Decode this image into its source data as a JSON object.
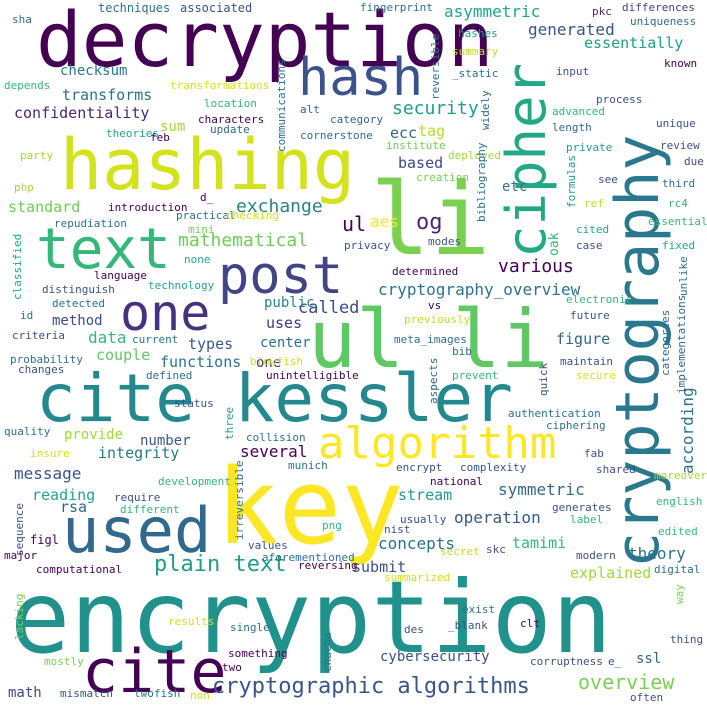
{
  "words": [
    {
      "text": "encryption",
      "color": "#21918c"
    },
    {
      "text": "decryption",
      "color": "#440154"
    },
    {
      "text": "hashing",
      "color": "#d2e21b"
    },
    {
      "text": "li",
      "color": "#7ad151"
    },
    {
      "text": "cryptography",
      "color": "#2a788e"
    },
    {
      "text": "cite kessler",
      "color": "#23898e"
    },
    {
      "text": "key",
      "color": "#fde725"
    },
    {
      "text": "ul li",
      "color": "#5ec962"
    },
    {
      "text": "used",
      "color": "#31688e"
    },
    {
      "text": "cite",
      "color": "#440154"
    },
    {
      "text": "hash",
      "color": "#3b528b"
    },
    {
      "text": "cipher",
      "color": "#22a884"
    },
    {
      "text": "text",
      "color": "#35b779"
    },
    {
      "text": "post",
      "color": "#414487"
    },
    {
      "text": "one",
      "color": "#46327e"
    },
    {
      "text": "algorithm",
      "color": "#fde725"
    },
    {
      "text": "cryptographic algorithms",
      "color": "#39568c"
    },
    {
      "text": "plain text",
      "color": "#1f9e89"
    },
    {
      "text": "overview",
      "color": "#7ad151"
    },
    {
      "text": "various",
      "color": "#440154"
    },
    {
      "text": "og",
      "color": "#482878"
    },
    {
      "text": "ul",
      "color": "#440154"
    },
    {
      "text": "aes",
      "color": "#fde725"
    },
    {
      "text": "cryptography_overview",
      "color": "#2c728e"
    },
    {
      "text": "called",
      "color": "#3e4989"
    },
    {
      "text": "mathematical",
      "color": "#6ece58"
    },
    {
      "text": "exchange",
      "color": "#26828e"
    },
    {
      "text": "security",
      "color": "#1f9e89"
    },
    {
      "text": "asymmetric",
      "color": "#22a884"
    },
    {
      "text": "generated",
      "color": "#3b528b"
    },
    {
      "text": "essentially",
      "color": "#1fa088"
    },
    {
      "text": "transforms",
      "color": "#2c728e"
    },
    {
      "text": "confidentiality",
      "color": "#482878"
    },
    {
      "text": "checksum",
      "color": "#2a788e"
    },
    {
      "text": "standard",
      "color": "#6ece58"
    },
    {
      "text": "one",
      "color": "#46327e"
    },
    {
      "text": "data",
      "color": "#35b779"
    },
    {
      "text": "method",
      "color": "#3e4989"
    },
    {
      "text": "couple",
      "color": "#5ec962"
    },
    {
      "text": "functions",
      "color": "#2c728e"
    },
    {
      "text": "types",
      "color": "#38598c"
    },
    {
      "text": "uses",
      "color": "#443983"
    },
    {
      "text": "public",
      "color": "#25848e"
    },
    {
      "text": "center",
      "color": "#2d708e"
    },
    {
      "text": "ecc",
      "color": "#31688e"
    },
    {
      "text": "tag",
      "color": "#b5de2b"
    },
    {
      "text": "based",
      "color": "#3e4989"
    },
    {
      "text": "etc",
      "color": "#2a788e"
    },
    {
      "text": "oak",
      "color": "#35b779"
    },
    {
      "text": "figure",
      "color": "#31688e"
    },
    {
      "text": "integrity",
      "color": "#2a788e"
    },
    {
      "text": "message",
      "color": "#3b528b"
    },
    {
      "text": "reading",
      "color": "#22a884"
    },
    {
      "text": "provide",
      "color": "#a0da39"
    },
    {
      "text": "number",
      "color": "#38598c"
    },
    {
      "text": "several",
      "color": "#440154"
    },
    {
      "text": "according",
      "color": "#2c728e"
    },
    {
      "text": "symmetric",
      "color": "#31688e"
    },
    {
      "text": "stream",
      "color": "#1f9e89"
    },
    {
      "text": "operation",
      "color": "#38598c"
    },
    {
      "text": "concepts",
      "color": "#2c728e"
    },
    {
      "text": "tamimi",
      "color": "#35b779"
    },
    {
      "text": "submit",
      "color": "#3b528b"
    },
    {
      "text": "theory",
      "color": "#2c728e"
    },
    {
      "text": "explained",
      "color": "#a0da39"
    },
    {
      "text": "rsa",
      "color": "#31688e"
    },
    {
      "text": "math",
      "color": "#3e4989"
    },
    {
      "text": "cybersecurity",
      "color": "#3b528b"
    },
    {
      "text": "ssl",
      "color": "#31688e"
    },
    {
      "text": "sum",
      "color": "#a0da39"
    },
    {
      "text": "figl",
      "color": "#440154"
    },
    {
      "text": "sha",
      "color": "#2c728e"
    },
    {
      "text": "techniques",
      "color": "#2c728e"
    },
    {
      "text": "associated",
      "color": "#3b528b"
    },
    {
      "text": "fingerprint",
      "color": "#2c728e"
    },
    {
      "text": "pkc",
      "color": "#482878"
    },
    {
      "text": "differences",
      "color": "#414487"
    },
    {
      "text": "uniqueness",
      "color": "#2c728e"
    },
    {
      "text": "hashes",
      "color": "#1f9e89"
    },
    {
      "text": "summary",
      "color": "#bddf26"
    },
    {
      "text": "reversible",
      "color": "#2c728e"
    },
    {
      "text": "_static",
      "color": "#2c728e"
    },
    {
      "text": "input",
      "color": "#3b528b"
    },
    {
      "text": "known",
      "color": "#440154"
    },
    {
      "text": "depends",
      "color": "#35b779"
    },
    {
      "text": "transformations",
      "color": "#d2e21b"
    },
    {
      "text": "process",
      "color": "#3b528b"
    },
    {
      "text": "advanced",
      "color": "#35b779"
    },
    {
      "text": "length",
      "color": "#31688e"
    },
    {
      "text": "unique",
      "color": "#3b528b"
    },
    {
      "text": "location",
      "color": "#35b779"
    },
    {
      "text": "communications",
      "color": "#2c728e"
    },
    {
      "text": "alt",
      "color": "#31688e"
    },
    {
      "text": "category",
      "color": "#31688e"
    },
    {
      "text": "widely",
      "color": "#31688e"
    },
    {
      "text": "institute",
      "color": "#6ece58"
    },
    {
      "text": "cornerstone",
      "color": "#2c728e"
    },
    {
      "text": "private",
      "color": "#1f9e89"
    },
    {
      "text": "review",
      "color": "#3b528b"
    },
    {
      "text": "due",
      "color": "#3e4989"
    },
    {
      "text": "theories",
      "color": "#22a884"
    },
    {
      "text": "feb",
      "color": "#440154"
    },
    {
      "text": "characters",
      "color": "#440154"
    },
    {
      "text": "update",
      "color": "#31688e"
    },
    {
      "text": "party",
      "color": "#a0da39"
    },
    {
      "text": "deployed",
      "color": "#a0da39"
    },
    {
      "text": "creation",
      "color": "#7ad151"
    },
    {
      "text": "bibliography",
      "color": "#2c728e"
    },
    {
      "text": "formulas",
      "color": "#1f9e89"
    },
    {
      "text": "see",
      "color": "#3b528b"
    },
    {
      "text": "third",
      "color": "#2c728e"
    },
    {
      "text": "php",
      "color": "#a0da39"
    },
    {
      "text": "d_",
      "color": "#440154"
    },
    {
      "text": "introduction",
      "color": "#440154"
    },
    {
      "text": "practical",
      "color": "#2c728e"
    },
    {
      "text": "mini",
      "color": "#7ad151"
    },
    {
      "text": "checking",
      "color": "#d2e21b"
    },
    {
      "text": "ref",
      "color": "#bddf26"
    },
    {
      "text": "rc4",
      "color": "#35b779"
    },
    {
      "text": "repudiation",
      "color": "#2c728e"
    },
    {
      "text": "none",
      "color": "#22a884"
    },
    {
      "text": "essential",
      "color": "#35b779"
    },
    {
      "text": "privacy",
      "color": "#3b528b"
    },
    {
      "text": "modes",
      "color": "#3b528b"
    },
    {
      "text": "cited",
      "color": "#22a884"
    },
    {
      "text": "case",
      "color": "#3b528b"
    },
    {
      "text": "fixed",
      "color": "#22a884"
    },
    {
      "text": "classified",
      "color": "#22a884"
    },
    {
      "text": "language",
      "color": "#440154"
    },
    {
      "text": "determined",
      "color": "#440154"
    },
    {
      "text": "technology",
      "color": "#22a884"
    },
    {
      "text": "electronic",
      "color": "#35b779"
    },
    {
      "text": "unlike",
      "color": "#2c728e"
    },
    {
      "text": "distinguish",
      "color": "#3b528b"
    },
    {
      "text": "vs",
      "color": "#440154"
    },
    {
      "text": "future",
      "color": "#3b528b"
    },
    {
      "text": "detected",
      "color": "#2c728e"
    },
    {
      "text": "previously",
      "color": "#bddf26"
    },
    {
      "text": "categories",
      "color": "#31688e"
    },
    {
      "text": "implementations",
      "color": "#31688e"
    },
    {
      "text": "id",
      "color": "#2c728e"
    },
    {
      "text": "criteria",
      "color": "#3b528b"
    },
    {
      "text": "meta_images",
      "color": "#2c728e"
    },
    {
      "text": "bib",
      "color": "#2c728e"
    },
    {
      "text": "current",
      "color": "#2c728e"
    },
    {
      "text": "probability",
      "color": "#2c728e"
    },
    {
      "text": "blowfish",
      "color": "#d2e21b"
    },
    {
      "text": "maintain",
      "color": "#3b528b"
    },
    {
      "text": "changes",
      "color": "#3b528b"
    },
    {
      "text": "defined",
      "color": "#2c728e"
    },
    {
      "text": "unintelligible",
      "color": "#440154"
    },
    {
      "text": "prevent",
      "color": "#35b779"
    },
    {
      "text": "secure",
      "color": "#d2e21b"
    },
    {
      "text": "aspects",
      "color": "#31688e"
    },
    {
      "text": "quick",
      "color": "#3b528b"
    },
    {
      "text": "status",
      "color": "#3b528b"
    },
    {
      "text": "three",
      "color": "#22a884"
    },
    {
      "text": "authentication",
      "color": "#2c728e"
    },
    {
      "text": "ciphering",
      "color": "#2c728e"
    },
    {
      "text": "quality",
      "color": "#2c728e"
    },
    {
      "text": "collision",
      "color": "#2c728e"
    },
    {
      "text": "fab",
      "color": "#3b528b"
    },
    {
      "text": "insure",
      "color": "#d2e21b"
    },
    {
      "text": "munich",
      "color": "#2c728e"
    },
    {
      "text": "encrypt",
      "color": "#3b528b"
    },
    {
      "text": "complexity",
      "color": "#3b528b"
    },
    {
      "text": "shared",
      "color": "#3b528b"
    },
    {
      "text": "development",
      "color": "#35b779"
    },
    {
      "text": "national",
      "color": "#440154"
    },
    {
      "text": "moreover",
      "color": "#a0da39"
    },
    {
      "text": "require",
      "color": "#3b528b"
    },
    {
      "text": "english",
      "color": "#35b779"
    },
    {
      "text": "different",
      "color": "#35b779"
    },
    {
      "text": "irreversible",
      "color": "#2c728e"
    },
    {
      "text": "generates",
      "color": "#3b528b"
    },
    {
      "text": "sequence",
      "color": "#3b528b"
    },
    {
      "text": "usually",
      "color": "#3b528b"
    },
    {
      "text": "edited",
      "color": "#35b779"
    },
    {
      "text": "label",
      "color": "#35b779"
    },
    {
      "text": "nist",
      "color": "#3b528b"
    },
    {
      "text": "png",
      "color": "#35b779"
    },
    {
      "text": "skc",
      "color": "#3b528b"
    },
    {
      "text": "major",
      "color": "#440154"
    },
    {
      "text": "values",
      "color": "#3b528b"
    },
    {
      "text": "secret",
      "color": "#bddf26"
    },
    {
      "text": "modern",
      "color": "#3b528b"
    },
    {
      "text": "digital",
      "color": "#2c728e"
    },
    {
      "text": "computational",
      "color": "#440154"
    },
    {
      "text": "aforementioned",
      "color": "#2c728e"
    },
    {
      "text": "reversing",
      "color": "#440154"
    },
    {
      "text": "summarized",
      "color": "#d2e21b"
    },
    {
      "text": "way",
      "color": "#7ad151"
    },
    {
      "text": "exist",
      "color": "#2c728e"
    },
    {
      "text": "results",
      "color": "#d2e21b"
    },
    {
      "text": "clt",
      "color": "#440154"
    },
    {
      "text": "single",
      "color": "#2c728e"
    },
    {
      "text": "thing",
      "color": "#3b528b"
    },
    {
      "text": "des",
      "color": "#3b528b"
    },
    {
      "text": "_blank",
      "color": "#3b528b"
    },
    {
      "text": "lacking",
      "color": "#7ad151"
    },
    {
      "text": "something",
      "color": "#440154"
    },
    {
      "text": "mostly",
      "color": "#7ad151"
    },
    {
      "text": "chacha",
      "color": "#2c728e"
    },
    {
      "text": "corruptness",
      "color": "#3b528b"
    },
    {
      "text": "e_",
      "color": "#3b528b"
    },
    {
      "text": "two",
      "color": "#440154"
    },
    {
      "text": "mismatch",
      "color": "#3b528b"
    },
    {
      "text": "twofish",
      "color": "#2c728e"
    },
    {
      "text": "non",
      "color": "#d2e21b"
    },
    {
      "text": "often",
      "color": "#3b528b"
    }
  ]
}
